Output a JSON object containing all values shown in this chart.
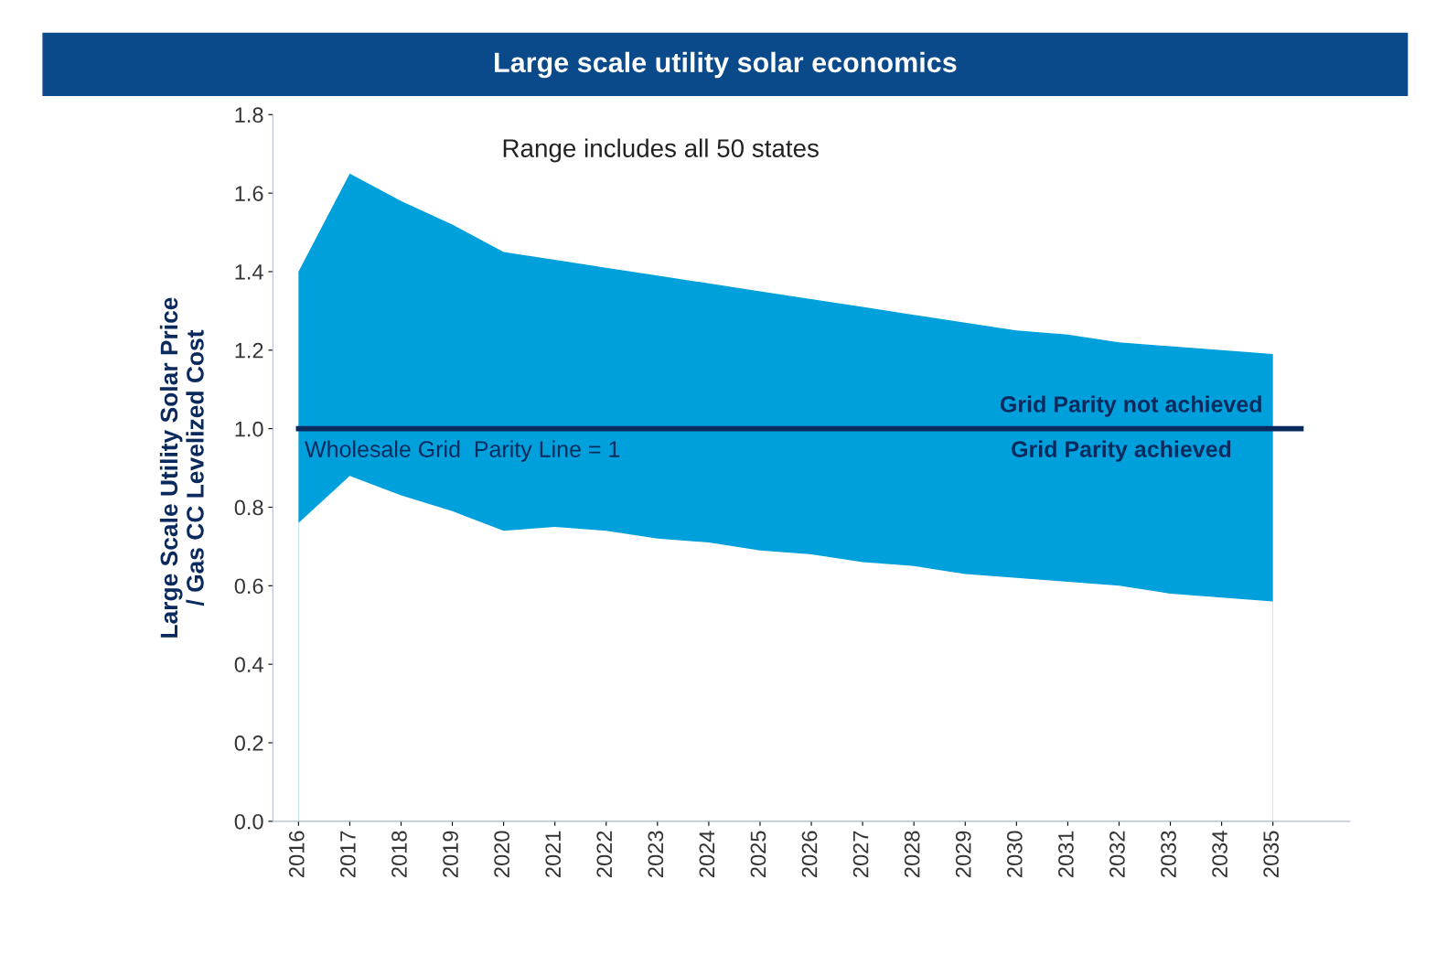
{
  "chart_data": {
    "type": "area",
    "title": "Large scale utility solar economics",
    "ylabel": "Large Scale Utility Solar Price\n/ Gas CC Levelized Cost",
    "categories": [
      "2016",
      "2017",
      "2018",
      "2019",
      "2020",
      "2021",
      "2022",
      "2023",
      "2024",
      "2025",
      "2026",
      "2027",
      "2028",
      "2029",
      "2030",
      "2031",
      "2032",
      "2033",
      "2034",
      "2035"
    ],
    "series": [
      {
        "color": "#00a0dc",
        "values": [
          1.4,
          1.65,
          1.58,
          1.52,
          1.45,
          1.43,
          1.41,
          1.39,
          1.37,
          1.35,
          1.33,
          1.31,
          1.29,
          1.27,
          1.25,
          1.24,
          1.22,
          1.21,
          1.2,
          1.19
        ]
      },
      {
        "color": "#ffffff",
        "values": [
          0.76,
          0.88,
          0.83,
          0.79,
          0.74,
          0.75,
          0.74,
          0.72,
          0.71,
          0.69,
          0.68,
          0.66,
          0.65,
          0.63,
          0.62,
          0.61,
          0.6,
          0.58,
          0.57,
          0.56
        ]
      }
    ],
    "ylim": [
      0,
      1.8
    ],
    "yticks": [
      {
        "value": 0,
        "label": "0.0"
      },
      {
        "value": 0.2,
        "label": "0.2"
      },
      {
        "value": 0.4,
        "label": "0.4"
      },
      {
        "value": 0.6,
        "label": "0.6"
      },
      {
        "value": 0.8,
        "label": "0.8"
      },
      {
        "value": 1,
        "label": "1.0"
      },
      {
        "value": 1.2,
        "label": "1.2"
      },
      {
        "value": 1.4,
        "label": "1.4"
      },
      {
        "value": 1.6,
        "label": "1.6"
      },
      {
        "value": 1.8,
        "label": "1.8"
      }
    ],
    "ref_lines": [
      {
        "axis": "y",
        "value": 1,
        "label": "Wholesale Grid  Parity Line = 1",
        "color": "#0a2a5e"
      }
    ],
    "annotations": [
      "Range includes all 50 states",
      {
        "text": "Grid Parity not achieved",
        "x": "2035",
        "y": 1
      },
      {
        "text": "Grid Parity achieved",
        "x": "2035",
        "y": 1
      }
    ],
    "grid": false,
    "legend": false
  }
}
